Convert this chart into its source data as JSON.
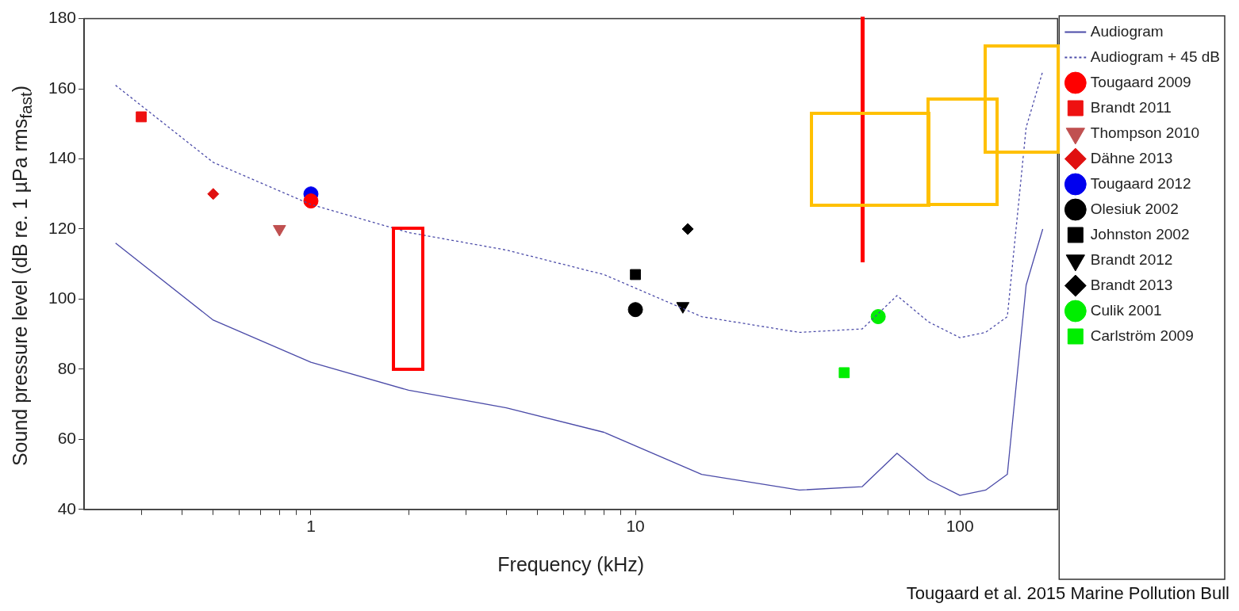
{
  "chart_data": {
    "type": "scatter",
    "xlabel": "Frequency (kHz)",
    "ylabel": "Sound pressure level (dB re. 1 µPa rms$_{fast}$)",
    "annotations": [
      "Tougaard et al. 2015 Marine Pollution Bull"
    ],
    "log": "x",
    "grid": false,
    "legend": "right",
    "xlim": [
      0.2,
      200
    ],
    "ylim": [
      40,
      180
    ],
    "xticks": [
      {
        "value": 0.3,
        "label": null
      },
      {
        "value": 0.4,
        "label": null
      },
      {
        "value": 0.5,
        "label": null
      },
      {
        "value": 0.6,
        "label": null
      },
      {
        "value": 0.7,
        "label": null
      },
      {
        "value": 0.8,
        "label": null
      },
      {
        "value": 0.9,
        "label": null
      },
      1,
      {
        "value": 2,
        "label": null
      },
      {
        "value": 3,
        "label": null
      },
      {
        "value": 4,
        "label": null
      },
      {
        "value": 5,
        "label": null
      },
      {
        "value": 6,
        "label": null
      },
      {
        "value": 7,
        "label": null
      },
      {
        "value": 8,
        "label": null
      },
      {
        "value": 9,
        "label": null
      },
      10,
      {
        "value": 20,
        "label": null
      },
      {
        "value": 30,
        "label": null
      },
      {
        "value": 40,
        "label": null
      },
      {
        "value": 50,
        "label": null
      },
      {
        "value": 60,
        "label": null
      },
      {
        "value": 70,
        "label": null
      },
      {
        "value": 80,
        "label": null
      },
      {
        "value": 90,
        "label": null
      },
      100
    ],
    "yticks": [
      40,
      60,
      80,
      100,
      120,
      140,
      160,
      180
    ],
    "series": [
      {
        "name": "Audiogram",
        "type": "line",
        "color": "#4b4ba8",
        "marker": "none",
        "line_style": "solid",
        "x": [
          0.25,
          0.5,
          1,
          2,
          4,
          8,
          16,
          32,
          50,
          64,
          80,
          100,
          120,
          140,
          160,
          180
        ],
        "values": [
          116,
          94,
          82,
          74,
          69,
          62,
          50,
          45.5,
          46.5,
          56,
          48.5,
          44,
          45.5,
          50,
          104,
          120
        ]
      },
      {
        "name": "Audiogram + 45 dB",
        "type": "line",
        "color": "#4b4ba8",
        "marker": "none",
        "line_style": "dotted",
        "x": [
          0.25,
          0.5,
          1,
          2,
          4,
          8,
          16,
          32,
          50,
          64,
          80,
          100,
          120,
          140,
          160,
          180
        ],
        "values": [
          161,
          139,
          127,
          119,
          114,
          107,
          95,
          90.5,
          91.5,
          101,
          93.5,
          89,
          90.5,
          95,
          149,
          165
        ]
      },
      {
        "name": "Tougaard 2009",
        "color": "#ff0000",
        "marker": "circle",
        "x": [
          1
        ],
        "values": [
          128
        ]
      },
      {
        "name": "Brandt 2011",
        "color": "#ee1111",
        "marker": "square",
        "x": [
          0.3
        ],
        "values": [
          152
        ]
      },
      {
        "name": "Thompson 2010",
        "color": "#c05050",
        "marker": "triangle-down",
        "x": [
          0.8
        ],
        "values": [
          120
        ]
      },
      {
        "name": "Dähne 2013",
        "color": "#e01010",
        "marker": "diamond",
        "x": [
          0.5
        ],
        "values": [
          130
        ]
      },
      {
        "name": "Tougaard 2012",
        "color": "#0000ee",
        "marker": "circle",
        "x": [
          1
        ],
        "values": [
          130
        ]
      },
      {
        "name": "Olesiuk 2002",
        "color": "#000000",
        "marker": "circle",
        "x": [
          10
        ],
        "values": [
          97
        ]
      },
      {
        "name": "Johnston 2002",
        "color": "#000000",
        "marker": "square",
        "x": [
          10
        ],
        "values": [
          107
        ]
      },
      {
        "name": "Brandt 2012",
        "color": "#000000",
        "marker": "triangle-down",
        "x": [
          14
        ],
        "values": [
          98
        ]
      },
      {
        "name": "Brandt 2013",
        "color": "#000000",
        "marker": "diamond",
        "x": [
          14.5
        ],
        "values": [
          120
        ]
      },
      {
        "name": "Culik 2001",
        "color": "#00ee00",
        "marker": "circle",
        "x": [
          56
        ],
        "values": [
          95
        ]
      },
      {
        "name": "Carlström 2009",
        "color": "#00ee00",
        "marker": "square",
        "x": [
          44
        ],
        "values": [
          79
        ]
      }
    ]
  }
}
